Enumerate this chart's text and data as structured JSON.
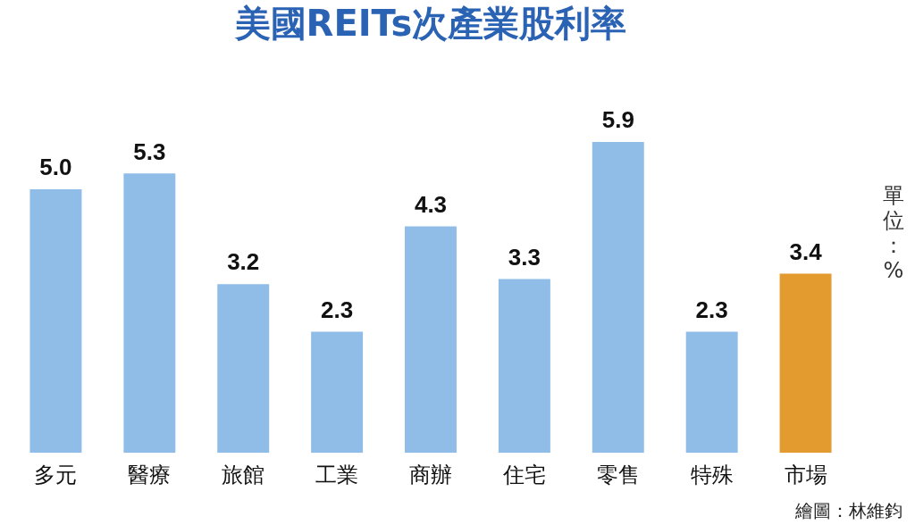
{
  "chart_data": {
    "type": "bar",
    "title": "美國REITs次產業股利率",
    "ylabel": "單位：%",
    "categories": [
      "多元",
      "醫療",
      "旅館",
      "工業",
      "商辦",
      "住宅",
      "零售",
      "特殊",
      "市場"
    ],
    "values": [
      5.0,
      5.3,
      3.2,
      2.3,
      4.3,
      3.3,
      5.9,
      2.3,
      3.4
    ],
    "colors": [
      "#8fbde8",
      "#8fbde8",
      "#8fbde8",
      "#8fbde8",
      "#8fbde8",
      "#8fbde8",
      "#8fbde8",
      "#8fbde8",
      "#e39a2e"
    ],
    "value_labels": [
      "5.0",
      "5.3",
      "3.2",
      "2.3",
      "4.3",
      "3.3",
      "5.9",
      "2.3",
      "3.4"
    ],
    "grid": false,
    "legend": false,
    "annotations": [
      "繪圖：林維鈞"
    ]
  }
}
